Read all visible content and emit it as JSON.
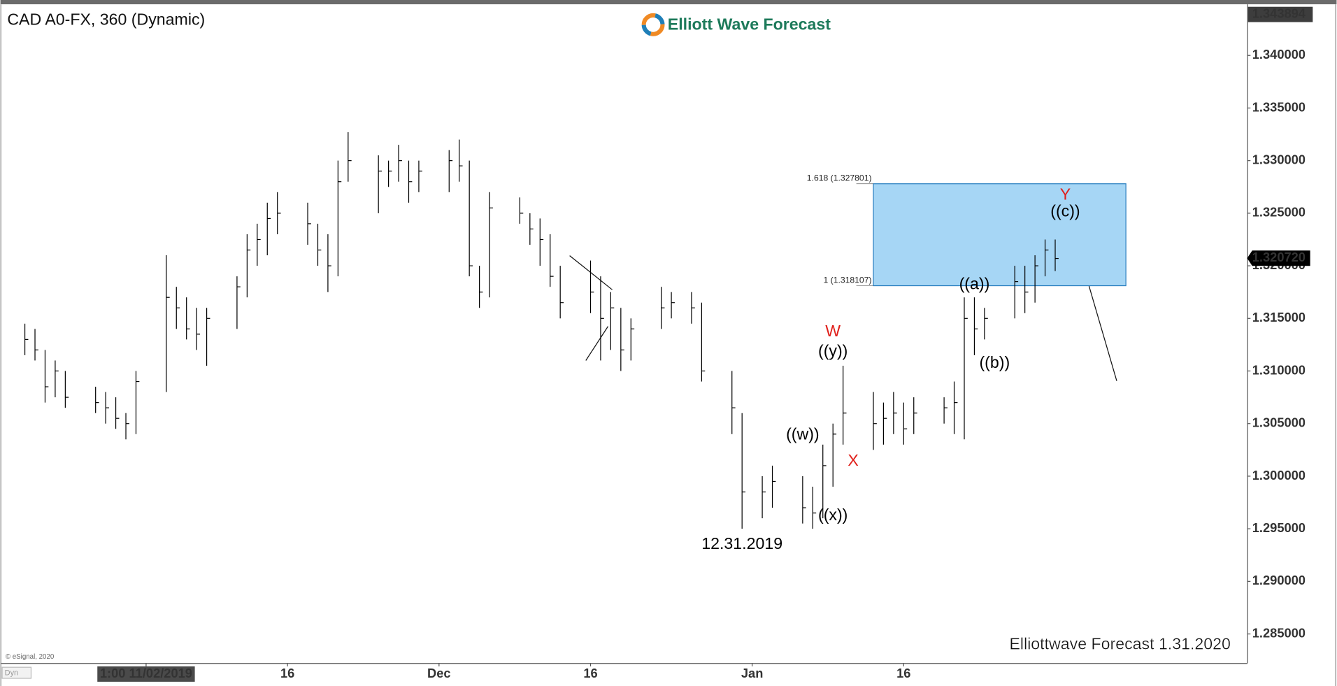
{
  "chart_data": {
    "type": "ohlc",
    "title": "CAD A0-FX, 360 (Dynamic)",
    "color": "#000000",
    "x": [
      "2019-10-21",
      "2019-10-22",
      "2019-10-23",
      "2019-10-24",
      "2019-10-25",
      "2019-10-28",
      "2019-10-29",
      "2019-10-30",
      "2019-10-31",
      "2019-11-01",
      "2019-11-04",
      "2019-11-05",
      "2019-11-06",
      "2019-11-07",
      "2019-11-08",
      "2019-11-11",
      "2019-11-12",
      "2019-11-13",
      "2019-11-14",
      "2019-11-15",
      "2019-11-18",
      "2019-11-19",
      "2019-11-20",
      "2019-11-21",
      "2019-11-22",
      "2019-11-25",
      "2019-11-26",
      "2019-11-27",
      "2019-11-28",
      "2019-11-29",
      "2019-12-02",
      "2019-12-03",
      "2019-12-04",
      "2019-12-05",
      "2019-12-06",
      "2019-12-09",
      "2019-12-10",
      "2019-12-11",
      "2019-12-12",
      "2019-12-13",
      "2019-12-16",
      "2019-12-17",
      "2019-12-18",
      "2019-12-19",
      "2019-12-20",
      "2019-12-23",
      "2019-12-24",
      "2019-12-26",
      "2019-12-27",
      "2019-12-30",
      "2019-12-31",
      "2020-01-02",
      "2020-01-03",
      "2020-01-06",
      "2020-01-07",
      "2020-01-08",
      "2020-01-09",
      "2020-01-10",
      "2020-01-13",
      "2020-01-14",
      "2020-01-15",
      "2020-01-16",
      "2020-01-17",
      "2020-01-20",
      "2020-01-21",
      "2020-01-22",
      "2020-01-23",
      "2020-01-24",
      "2020-01-27",
      "2020-01-28",
      "2020-01-29",
      "2020-01-30",
      "2020-01-31"
    ],
    "high": [
      1.3145,
      1.314,
      1.312,
      1.311,
      1.31,
      1.3085,
      1.308,
      1.3075,
      1.306,
      1.31,
      1.321,
      1.318,
      1.317,
      1.316,
      1.316,
      1.319,
      1.323,
      1.324,
      1.326,
      1.327,
      1.326,
      1.324,
      1.323,
      1.33,
      1.3327,
      1.3305,
      1.33,
      1.3315,
      1.33,
      1.33,
      1.331,
      1.332,
      1.33,
      1.32,
      1.327,
      1.3265,
      1.325,
      1.3245,
      1.323,
      1.32,
      1.3205,
      1.319,
      1.3175,
      1.316,
      1.315,
      1.318,
      1.3175,
      1.3175,
      1.3165,
      1.31,
      1.306,
      1.3,
      1.301,
      1.3,
      1.299,
      1.303,
      1.305,
      1.3105,
      1.308,
      1.307,
      1.308,
      1.307,
      1.3075,
      1.3075,
      1.309,
      1.317,
      1.317,
      1.316,
      1.32,
      1.32,
      1.321,
      1.3225,
      1.3225
    ],
    "low": [
      1.3115,
      1.311,
      1.307,
      1.3075,
      1.3065,
      1.306,
      1.305,
      1.3045,
      1.3035,
      1.304,
      1.308,
      1.314,
      1.313,
      1.312,
      1.3105,
      1.314,
      1.317,
      1.32,
      1.321,
      1.323,
      1.322,
      1.32,
      1.3175,
      1.319,
      1.328,
      1.325,
      1.3275,
      1.328,
      1.326,
      1.327,
      1.327,
      1.328,
      1.319,
      1.316,
      1.317,
      1.324,
      1.322,
      1.32,
      1.318,
      1.315,
      1.3155,
      1.311,
      1.312,
      1.31,
      1.311,
      1.314,
      1.315,
      1.3145,
      1.309,
      1.304,
      1.295,
      1.296,
      1.297,
      1.2955,
      1.295,
      1.296,
      1.299,
      1.303,
      1.3025,
      1.303,
      1.304,
      1.303,
      1.304,
      1.305,
      1.304,
      1.3035,
      1.3115,
      1.313,
      1.315,
      1.3155,
      1.3165,
      1.319,
      1.3195
    ],
    "close": [
      1.313,
      1.312,
      1.3085,
      1.31,
      1.3075,
      1.307,
      1.3065,
      1.3055,
      1.305,
      1.309,
      1.317,
      1.316,
      1.314,
      1.3135,
      1.315,
      1.318,
      1.3215,
      1.3225,
      1.3245,
      1.325,
      1.324,
      1.3215,
      1.32,
      1.328,
      1.33,
      1.329,
      1.329,
      1.33,
      1.328,
      1.329,
      1.33,
      1.3295,
      1.32,
      1.3175,
      1.3255,
      1.325,
      1.3235,
      1.3225,
      1.319,
      1.3165,
      1.3175,
      1.315,
      1.316,
      1.312,
      1.314,
      1.316,
      1.3165,
      1.316,
      1.31,
      1.3065,
      1.2985,
      1.2985,
      1.2995,
      1.297,
      1.2965,
      1.301,
      1.304,
      1.306,
      1.305,
      1.3055,
      1.306,
      1.3045,
      1.306,
      1.3065,
      1.307,
      1.315,
      1.314,
      1.315,
      1.3185,
      1.3175,
      1.32,
      1.3215,
      1.3207
    ],
    "xlim": [
      "2019-10-19",
      "2020-02-19"
    ],
    "xticks": [
      {
        "value": "2019-11-02",
        "label": "1:00 11/02/2019",
        "highlight": true
      },
      {
        "value": "2019-11-16",
        "label": "16"
      },
      {
        "value": "2019-12-01",
        "label": "Dec"
      },
      {
        "value": "2019-12-16",
        "label": "16"
      },
      {
        "value": "2020-01-01",
        "label": "Jan"
      },
      {
        "value": "2020-01-16",
        "label": "16"
      }
    ],
    "ylim": [
      1.28224,
      1.34462
    ],
    "yticks": [
      {
        "value": 1.285,
        "label": "1.285000"
      },
      {
        "value": 1.29,
        "label": "1.290000"
      },
      {
        "value": 1.295,
        "label": "1.295000"
      },
      {
        "value": 1.3,
        "label": "1.300000"
      },
      {
        "value": 1.305,
        "label": "1.305000"
      },
      {
        "value": 1.31,
        "label": "1.310000"
      },
      {
        "value": 1.315,
        "label": "1.315000"
      },
      {
        "value": 1.32,
        "label": "1.320000"
      },
      {
        "value": 1.325,
        "label": "1.325000"
      },
      {
        "value": 1.33,
        "label": "1.330000"
      },
      {
        "value": 1.335,
        "label": "1.335000"
      },
      {
        "value": 1.34,
        "label": "1.340000"
      }
    ],
    "max_price": {
      "value": 1.343894,
      "label": "1.343894"
    },
    "last_price": {
      "value": 1.32072,
      "label": "1.320720"
    },
    "fib_zone": {
      "top": 1.327801,
      "top_label": "1.618 (1.327801)",
      "bottom": 1.318107,
      "bottom_label": "1 (1.318107)",
      "start": "2020-01-13",
      "end": "2020-02-07",
      "color": "#a6d6f5"
    },
    "annotations": [
      {
        "text": "W",
        "x": "2020-01-09",
        "y": 1.3137,
        "color": "#e0201b"
      },
      {
        "text": "((y))",
        "x": "2020-01-09",
        "y": 1.3118,
        "color": "#000000"
      },
      {
        "text": "((w))",
        "x": "2020-01-06",
        "y": 1.3039,
        "color": "#000000"
      },
      {
        "text": "((x))",
        "x": "2020-01-09",
        "y": 1.2962,
        "color": "#000000"
      },
      {
        "text": "X",
        "x": "2020-01-11",
        "y": 1.3014,
        "color": "#e0201b"
      },
      {
        "text": "12.31.2019",
        "x": "2019-12-31",
        "y": 1.2935,
        "color": "#000000"
      },
      {
        "text": "((a))",
        "x": "2020-01-23",
        "y": 1.3182,
        "color": "#000000"
      },
      {
        "text": "((b))",
        "x": "2020-01-25",
        "y": 1.3107,
        "color": "#000000"
      },
      {
        "text": "((c))",
        "x": "2020-02-01",
        "y": 1.3251,
        "color": "#000000"
      },
      {
        "text": "Y",
        "x": "2020-02-01",
        "y": 1.3267,
        "color": "#e0201b"
      }
    ]
  },
  "logo": "Elliott Wave Forecast",
  "watermark": "Elliottwave Forecast 1.31.2020",
  "copyright": "© eSignal, 2020",
  "corner": "Dyn"
}
